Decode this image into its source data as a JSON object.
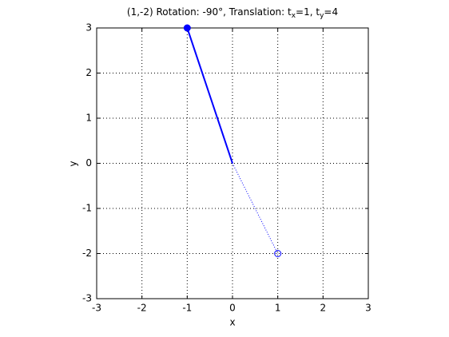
{
  "chart_data": {
    "type": "line",
    "title": "(1,-2) Rotation: -90°, Translation: t_x=1, t_y=4",
    "x_label": "x",
    "y_label": "y",
    "xlim": [
      -3,
      3
    ],
    "xticks": [
      -3,
      -2,
      -1,
      0,
      1,
      2,
      3
    ],
    "ylim": [
      -3,
      3
    ],
    "yticks": [
      -3,
      -2,
      -1,
      0,
      1,
      2,
      3
    ],
    "grid": true,
    "series": [
      {
        "x": [
          0,
          -1
        ],
        "y": [
          0,
          3
        ],
        "color": "#0000ff",
        "line": "solid",
        "marker": "filled"
      },
      {
        "x": [
          0,
          1
        ],
        "y": [
          0,
          -2
        ],
        "color": "#0000ff",
        "line": "dotted",
        "marker": "open"
      }
    ]
  }
}
